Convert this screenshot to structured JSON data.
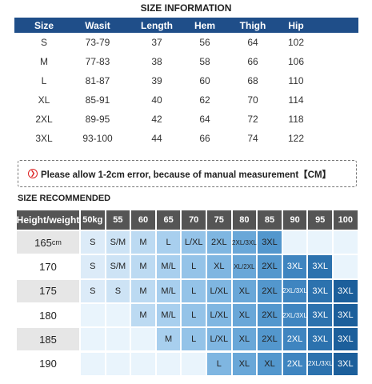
{
  "size_information": {
    "title": "SIZE INFORMATION",
    "header": [
      "Size",
      "Wasit",
      "Length",
      "Hem",
      "Thigh",
      "Hip"
    ],
    "rows": [
      [
        "S",
        "73-79",
        "37",
        "56",
        "64",
        "102"
      ],
      [
        "M",
        "77-83",
        "38",
        "58",
        "66",
        "106"
      ],
      [
        "L",
        "81-87",
        "39",
        "60",
        "68",
        "110"
      ],
      [
        "XL",
        "85-91",
        "40",
        "62",
        "70",
        "114"
      ],
      [
        "2XL",
        "89-95",
        "42",
        "64",
        "72",
        "118"
      ],
      [
        "3XL",
        "93-100",
        "44",
        "66",
        "74",
        "122"
      ]
    ]
  },
  "note": "Please allow 1-2cm error, because of manual measurement【CM】",
  "size_recommended": {
    "title": "SIZE RECOMMENDED",
    "header": [
      "Height/weight",
      "50kg",
      "55",
      "60",
      "65",
      "70",
      "75",
      "80",
      "85",
      "90",
      "95",
      "100"
    ],
    "rows": [
      {
        "height": "165",
        "unit": "cm",
        "cells": [
          "S",
          "S/M",
          "M",
          "L",
          "L/XL",
          "2XL",
          "2XL/3XL",
          "3XL",
          null,
          null,
          null
        ]
      },
      {
        "height": "170",
        "cells": [
          "S",
          "S/M",
          "M",
          "M/L",
          "L",
          "XL",
          "XL/2XL",
          "2XL",
          "3XL",
          "3XL",
          null
        ]
      },
      {
        "height": "175",
        "cells": [
          "S",
          "S",
          "M",
          "M/L",
          "L",
          "L/XL",
          "XL",
          "2XL",
          "2XL/3XL",
          "3XL",
          "3XL"
        ]
      },
      {
        "height": "180",
        "cells": [
          null,
          null,
          "M",
          "M/L",
          "L",
          "L/XL",
          "XL",
          "2XL",
          "2XL/3XL",
          "3XL",
          "3XL"
        ]
      },
      {
        "height": "185",
        "cells": [
          null,
          null,
          null,
          "M",
          "L",
          "L/XL",
          "XL",
          "2XL",
          "2XL",
          "3XL",
          "3XL"
        ]
      },
      {
        "height": "190",
        "cells": [
          null,
          null,
          null,
          null,
          null,
          "L",
          "XL",
          "XL",
          "2XL",
          "2XL/3XL",
          "3XL"
        ]
      }
    ]
  }
}
